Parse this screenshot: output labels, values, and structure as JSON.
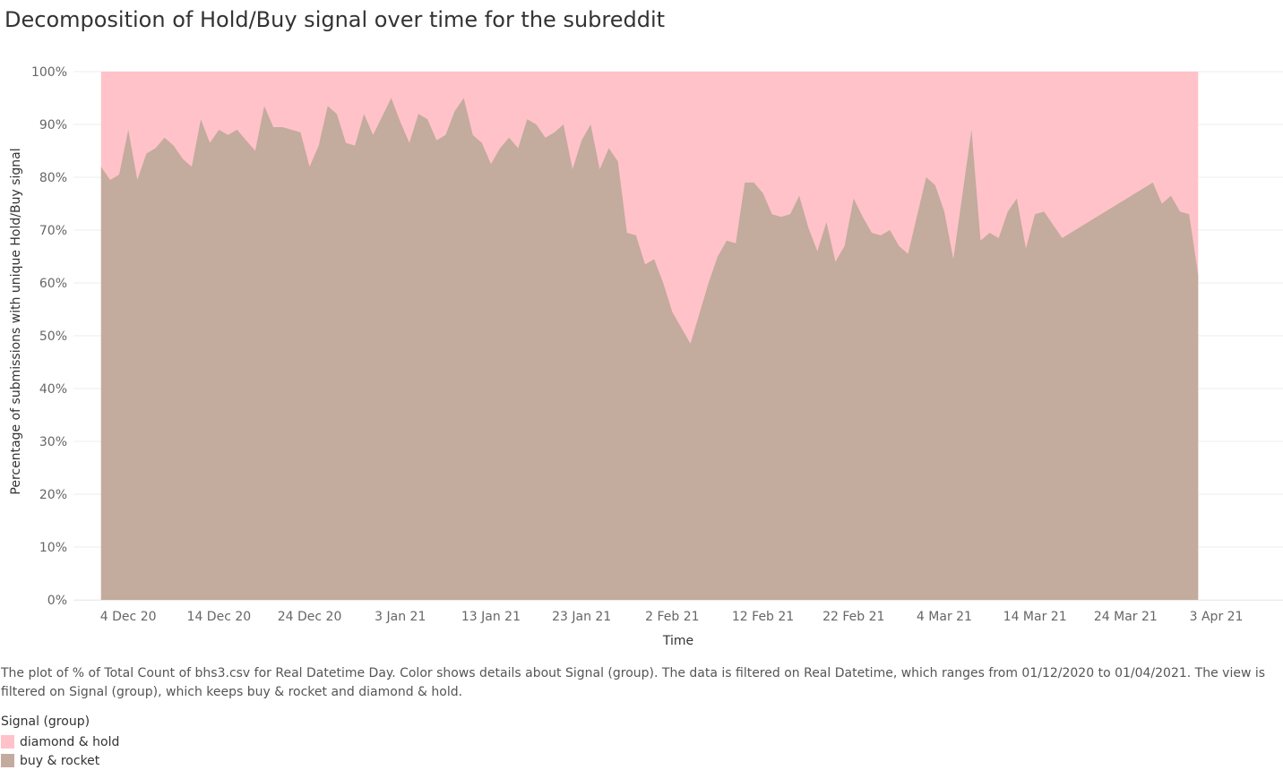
{
  "chart_title": "Decomposition of Hold/Buy signal over time for the subreddit",
  "caption": "The plot of % of Total Count of bhs3.csv for Real Datetime Day.  Color shows details about Signal (group). The data is filtered on Real Datetime, which ranges from 01/12/2020 to 01/04/2021. The view is filtered on Signal (group), which keeps buy & rocket and diamond & hold.",
  "legend": {
    "title": "Signal (group)",
    "items": [
      {
        "label": "diamond & hold",
        "color": "#ffc2c9"
      },
      {
        "label": "buy & rocket",
        "color": "#c3ab9d"
      }
    ]
  },
  "chart_data": {
    "type": "area",
    "stacked": "100%",
    "xlabel": "Time",
    "ylabel": "Percentage of submissions with unique Hold/Buy signal",
    "x_range": [
      "2020-12-01",
      "2021-04-05"
    ],
    "ylim": [
      0,
      100
    ],
    "grid": true,
    "y_ticks": [
      {
        "value": 0,
        "label": "0%"
      },
      {
        "value": 10,
        "label": "10%"
      },
      {
        "value": 20,
        "label": "20%"
      },
      {
        "value": 30,
        "label": "30%"
      },
      {
        "value": 40,
        "label": "40%"
      },
      {
        "value": 50,
        "label": "50%"
      },
      {
        "value": 60,
        "label": "60%"
      },
      {
        "value": 70,
        "label": "70%"
      },
      {
        "value": 80,
        "label": "80%"
      },
      {
        "value": 90,
        "label": "90%"
      },
      {
        "value": 100,
        "label": "100%"
      }
    ],
    "x_ticks": [
      {
        "date": "2020-12-04",
        "label": "4 Dec 20"
      },
      {
        "date": "2020-12-14",
        "label": "14 Dec 20"
      },
      {
        "date": "2020-12-24",
        "label": "24 Dec 20"
      },
      {
        "date": "2021-01-03",
        "label": "3 Jan 21"
      },
      {
        "date": "2021-01-13",
        "label": "13 Jan 21"
      },
      {
        "date": "2021-01-23",
        "label": "23 Jan 21"
      },
      {
        "date": "2021-02-02",
        "label": "2 Feb 21"
      },
      {
        "date": "2021-02-12",
        "label": "12 Feb 21"
      },
      {
        "date": "2021-02-22",
        "label": "22 Feb 21"
      },
      {
        "date": "2021-03-04",
        "label": "4 Mar 21"
      },
      {
        "date": "2021-03-14",
        "label": "14 Mar 21"
      },
      {
        "date": "2021-03-24",
        "label": "24 Mar 21"
      },
      {
        "date": "2021-04-03",
        "label": "3 Apr 21"
      }
    ],
    "series": [
      {
        "name": "diamond & hold",
        "color": "#ffc2c9",
        "values": "100% minus buy & rocket"
      },
      {
        "name": "buy & rocket",
        "color": "#c3ab9d",
        "points": [
          [
            "2020-12-01",
            82
          ],
          [
            "2020-12-02",
            79.5
          ],
          [
            "2020-12-03",
            80.5
          ],
          [
            "2020-12-04",
            89
          ],
          [
            "2020-12-05",
            79.5
          ],
          [
            "2020-12-06",
            84.5
          ],
          [
            "2020-12-07",
            85.5
          ],
          [
            "2020-12-08",
            87.5
          ],
          [
            "2020-12-09",
            86
          ],
          [
            "2020-12-10",
            83.5
          ],
          [
            "2020-12-11",
            82
          ],
          [
            "2020-12-12",
            91
          ],
          [
            "2020-12-13",
            86.5
          ],
          [
            "2020-12-14",
            89
          ],
          [
            "2020-12-15",
            88
          ],
          [
            "2020-12-16",
            89
          ],
          [
            "2020-12-17",
            87
          ],
          [
            "2020-12-18",
            85
          ],
          [
            "2020-12-19",
            93.5
          ],
          [
            "2020-12-20",
            89.5
          ],
          [
            "2020-12-21",
            89.5
          ],
          [
            "2020-12-22",
            89
          ],
          [
            "2020-12-23",
            88.5
          ],
          [
            "2020-12-24",
            82
          ],
          [
            "2020-12-25",
            86
          ],
          [
            "2020-12-26",
            93.5
          ],
          [
            "2020-12-27",
            92
          ],
          [
            "2020-12-28",
            86.5
          ],
          [
            "2020-12-29",
            86
          ],
          [
            "2020-12-30",
            92
          ],
          [
            "2020-12-31",
            88
          ],
          [
            "2021-01-01",
            91.5
          ],
          [
            "2021-01-02",
            95
          ],
          [
            "2021-01-03",
            90.5
          ],
          [
            "2021-01-04",
            86.5
          ],
          [
            "2021-01-05",
            92
          ],
          [
            "2021-01-06",
            91
          ],
          [
            "2021-01-07",
            87
          ],
          [
            "2021-01-08",
            88
          ],
          [
            "2021-01-09",
            92.5
          ],
          [
            "2021-01-10",
            95
          ],
          [
            "2021-01-11",
            88
          ],
          [
            "2021-01-12",
            86.5
          ],
          [
            "2021-01-13",
            82.5
          ],
          [
            "2021-01-14",
            85.5
          ],
          [
            "2021-01-15",
            87.5
          ],
          [
            "2021-01-16",
            85.5
          ],
          [
            "2021-01-17",
            91
          ],
          [
            "2021-01-18",
            90
          ],
          [
            "2021-01-19",
            87.5
          ],
          [
            "2021-01-20",
            88.5
          ],
          [
            "2021-01-21",
            90
          ],
          [
            "2021-01-22",
            81.5
          ],
          [
            "2021-01-23",
            87
          ],
          [
            "2021-01-24",
            90
          ],
          [
            "2021-01-25",
            81.5
          ],
          [
            "2021-01-26",
            85.5
          ],
          [
            "2021-01-27",
            83
          ],
          [
            "2021-01-28",
            69.5
          ],
          [
            "2021-01-29",
            69
          ],
          [
            "2021-01-30",
            63.5
          ],
          [
            "2021-01-31",
            64.5
          ],
          [
            "2021-02-01",
            60
          ],
          [
            "2021-02-02",
            54.5
          ],
          [
            "2021-02-03",
            51.5
          ],
          [
            "2021-02-04",
            48.5
          ],
          [
            "2021-02-06",
            60
          ],
          [
            "2021-02-07",
            65
          ],
          [
            "2021-02-08",
            68
          ],
          [
            "2021-02-09",
            67.5
          ],
          [
            "2021-02-10",
            79
          ],
          [
            "2021-02-11",
            79
          ],
          [
            "2021-02-12",
            77
          ],
          [
            "2021-02-13",
            73
          ],
          [
            "2021-02-14",
            72.5
          ],
          [
            "2021-02-15",
            73
          ],
          [
            "2021-02-16",
            76.5
          ],
          [
            "2021-02-17",
            70.5
          ],
          [
            "2021-02-18",
            66
          ],
          [
            "2021-02-19",
            71.5
          ],
          [
            "2021-02-20",
            64
          ],
          [
            "2021-02-21",
            67
          ],
          [
            "2021-02-22",
            76
          ],
          [
            "2021-02-23",
            72.5
          ],
          [
            "2021-02-24",
            69.5
          ],
          [
            "2021-02-25",
            69
          ],
          [
            "2021-02-26",
            70
          ],
          [
            "2021-02-27",
            67
          ],
          [
            "2021-02-28",
            65.5
          ],
          [
            "2021-03-02",
            80
          ],
          [
            "2021-03-03",
            78.5
          ],
          [
            "2021-03-04",
            73.5
          ],
          [
            "2021-03-05",
            64.5
          ],
          [
            "2021-03-07",
            89
          ],
          [
            "2021-03-08",
            68
          ],
          [
            "2021-03-09",
            69.5
          ],
          [
            "2021-03-10",
            68.5
          ],
          [
            "2021-03-11",
            73.5
          ],
          [
            "2021-03-12",
            76
          ],
          [
            "2021-03-13",
            66.5
          ],
          [
            "2021-03-14",
            73
          ],
          [
            "2021-03-15",
            73.5
          ],
          [
            "2021-03-16",
            71
          ],
          [
            "2021-03-17",
            68.5
          ],
          [
            "2021-03-27",
            79
          ],
          [
            "2021-03-28",
            75
          ],
          [
            "2021-03-29",
            76.5
          ],
          [
            "2021-03-30",
            73.5
          ],
          [
            "2021-03-31",
            73
          ],
          [
            "2021-04-01",
            61.5
          ]
        ]
      }
    ]
  }
}
